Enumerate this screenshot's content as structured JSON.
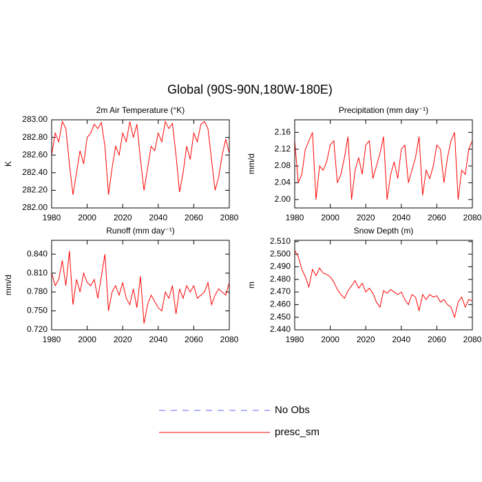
{
  "title": "Global (90S-90N,180W-180E)",
  "legend": [
    {
      "name": "No Obs",
      "color": "#6666ff",
      "dashed": true
    },
    {
      "name": "presc_sm",
      "color": "#ff0000",
      "dashed": false
    }
  ],
  "chart_data": [
    {
      "type": "line",
      "title": "2m Air Temperature (°K)",
      "ylabel": "K",
      "color": "#ff0000",
      "x": [
        1980,
        1982,
        1984,
        1986,
        1988,
        1990,
        1992,
        1994,
        1996,
        1998,
        2000,
        2002,
        2004,
        2006,
        2008,
        2010,
        2012,
        2014,
        2016,
        2018,
        2020,
        2022,
        2024,
        2026,
        2028,
        2030,
        2032,
        2034,
        2036,
        2038,
        2040,
        2042,
        2044,
        2046,
        2048,
        2050,
        2052,
        2054,
        2056,
        2058,
        2060,
        2062,
        2064,
        2066,
        2068,
        2070,
        2072,
        2074,
        2076,
        2078,
        2080
      ],
      "values": [
        282.6,
        282.85,
        282.75,
        282.98,
        282.9,
        282.5,
        282.15,
        282.4,
        282.65,
        282.5,
        282.8,
        282.85,
        282.95,
        282.9,
        282.97,
        282.7,
        282.15,
        282.45,
        282.7,
        282.6,
        282.85,
        282.75,
        282.98,
        282.8,
        282.95,
        282.55,
        282.2,
        282.45,
        282.7,
        282.65,
        282.85,
        282.75,
        282.98,
        282.9,
        282.96,
        282.6,
        282.18,
        282.4,
        282.7,
        282.55,
        282.85,
        282.75,
        282.95,
        282.98,
        282.9,
        282.55,
        282.2,
        282.35,
        282.6,
        282.78,
        282.62
      ],
      "xlim": [
        1980,
        2080
      ],
      "xticks": [
        1980,
        2000,
        2020,
        2040,
        2060,
        2080
      ],
      "ylim": [
        282.0,
        283.0
      ],
      "yticks": [
        {
          "value": 282.0,
          "label": "282.00"
        },
        {
          "value": 282.2,
          "label": "282.20"
        },
        {
          "value": 282.4,
          "label": "282.40"
        },
        {
          "value": 282.6,
          "label": "282.60"
        },
        {
          "value": 282.8,
          "label": "282.80"
        },
        {
          "value": 283.0,
          "label": "283.00"
        }
      ]
    },
    {
      "type": "line",
      "title": "Precipitation (mm day⁻¹)",
      "ylabel": "mm/d",
      "color": "#ff0000",
      "x": [
        1980,
        1982,
        1984,
        1986,
        1988,
        1990,
        1992,
        1994,
        1996,
        1998,
        2000,
        2002,
        2004,
        2006,
        2008,
        2010,
        2012,
        2014,
        2016,
        2018,
        2020,
        2022,
        2024,
        2026,
        2028,
        2030,
        2032,
        2034,
        2036,
        2038,
        2040,
        2042,
        2044,
        2046,
        2048,
        2050,
        2052,
        2054,
        2056,
        2058,
        2060,
        2062,
        2064,
        2066,
        2068,
        2070,
        2072,
        2074,
        2076,
        2078,
        2080
      ],
      "values": [
        2.14,
        2.04,
        2.06,
        2.12,
        2.14,
        2.16,
        2.0,
        2.08,
        2.07,
        2.09,
        2.13,
        2.14,
        2.04,
        2.06,
        2.1,
        2.15,
        2.0,
        2.07,
        2.1,
        2.06,
        2.13,
        2.14,
        2.05,
        2.08,
        2.11,
        2.15,
        2.0,
        2.06,
        2.09,
        2.05,
        2.12,
        2.13,
        2.04,
        2.07,
        2.1,
        2.15,
        2.01,
        2.07,
        2.05,
        2.08,
        2.13,
        2.12,
        2.04,
        2.1,
        2.14,
        2.16,
        2.0,
        2.07,
        2.06,
        2.12,
        2.14
      ],
      "xlim": [
        1980,
        2080
      ],
      "xticks": [
        1980,
        2000,
        2020,
        2040,
        2060,
        2080
      ],
      "ylim": [
        1.98,
        2.19
      ],
      "yticks": [
        {
          "value": 2.0,
          "label": "2.00"
        },
        {
          "value": 2.04,
          "label": "2.04"
        },
        {
          "value": 2.08,
          "label": "2.08"
        },
        {
          "value": 2.12,
          "label": "2.12"
        },
        {
          "value": 2.16,
          "label": "2.16"
        }
      ]
    },
    {
      "type": "line",
      "title": "Runoff (mm day⁻¹)",
      "ylabel": "mm/d",
      "color": "#ff0000",
      "x": [
        1980,
        1982,
        1984,
        1986,
        1988,
        1990,
        1992,
        1994,
        1996,
        1998,
        2000,
        2002,
        2004,
        2006,
        2008,
        2010,
        2012,
        2014,
        2016,
        2018,
        2020,
        2022,
        2024,
        2026,
        2028,
        2030,
        2032,
        2034,
        2036,
        2038,
        2040,
        2042,
        2044,
        2046,
        2048,
        2050,
        2052,
        2054,
        2056,
        2058,
        2060,
        2062,
        2064,
        2066,
        2068,
        2070,
        2072,
        2074,
        2076,
        2078,
        2080
      ],
      "values": [
        0.81,
        0.79,
        0.8,
        0.83,
        0.79,
        0.845,
        0.76,
        0.8,
        0.78,
        0.81,
        0.795,
        0.79,
        0.8,
        0.77,
        0.805,
        0.84,
        0.75,
        0.78,
        0.79,
        0.775,
        0.795,
        0.77,
        0.76,
        0.785,
        0.755,
        0.805,
        0.73,
        0.76,
        0.775,
        0.765,
        0.755,
        0.75,
        0.78,
        0.77,
        0.79,
        0.745,
        0.785,
        0.77,
        0.79,
        0.78,
        0.79,
        0.77,
        0.775,
        0.78,
        0.795,
        0.76,
        0.775,
        0.785,
        0.78,
        0.775,
        0.795
      ],
      "xlim": [
        1980,
        2080
      ],
      "xticks": [
        1980,
        2000,
        2020,
        2040,
        2060,
        2080
      ],
      "ylim": [
        0.72,
        0.862
      ],
      "yticks": [
        {
          "value": 0.72,
          "label": "0.720"
        },
        {
          "value": 0.75,
          "label": "0.750"
        },
        {
          "value": 0.78,
          "label": "0.780"
        },
        {
          "value": 0.81,
          "label": "0.810"
        },
        {
          "value": 0.84,
          "label": "0.840"
        }
      ]
    },
    {
      "type": "line",
      "title": "Snow Depth (m)",
      "ylabel": "m",
      "color": "#ff0000",
      "x": [
        1980,
        1982,
        1984,
        1986,
        1988,
        1990,
        1992,
        1994,
        1996,
        1998,
        2000,
        2002,
        2004,
        2006,
        2008,
        2010,
        2012,
        2014,
        2016,
        2018,
        2020,
        2022,
        2024,
        2026,
        2028,
        2030,
        2032,
        2034,
        2036,
        2038,
        2040,
        2042,
        2044,
        2046,
        2048,
        2050,
        2052,
        2054,
        2056,
        2058,
        2060,
        2062,
        2064,
        2066,
        2068,
        2070,
        2072,
        2074,
        2076,
        2078,
        2080
      ],
      "values": [
        2.503,
        2.498,
        2.488,
        2.482,
        2.474,
        2.488,
        2.483,
        2.489,
        2.485,
        2.484,
        2.482,
        2.478,
        2.472,
        2.468,
        2.465,
        2.471,
        2.475,
        2.479,
        2.473,
        2.477,
        2.47,
        2.473,
        2.469,
        2.462,
        2.458,
        2.471,
        2.469,
        2.472,
        2.47,
        2.468,
        2.47,
        2.464,
        2.46,
        2.468,
        2.466,
        2.455,
        2.468,
        2.464,
        2.468,
        2.466,
        2.467,
        2.462,
        2.464,
        2.46,
        2.458,
        2.45,
        2.462,
        2.466,
        2.458,
        2.464,
        2.463
      ],
      "xlim": [
        1980,
        2080
      ],
      "xticks": [
        1980,
        2000,
        2020,
        2040,
        2060,
        2080
      ],
      "ylim": [
        2.44,
        2.511
      ],
      "yticks": [
        {
          "value": 2.44,
          "label": "2.440"
        },
        {
          "value": 2.45,
          "label": "2.450"
        },
        {
          "value": 2.46,
          "label": "2.460"
        },
        {
          "value": 2.47,
          "label": "2.470"
        },
        {
          "value": 2.48,
          "label": "2.480"
        },
        {
          "value": 2.49,
          "label": "2.490"
        },
        {
          "value": 2.5,
          "label": "2.500"
        },
        {
          "value": 2.51,
          "label": "2.510"
        }
      ]
    }
  ]
}
